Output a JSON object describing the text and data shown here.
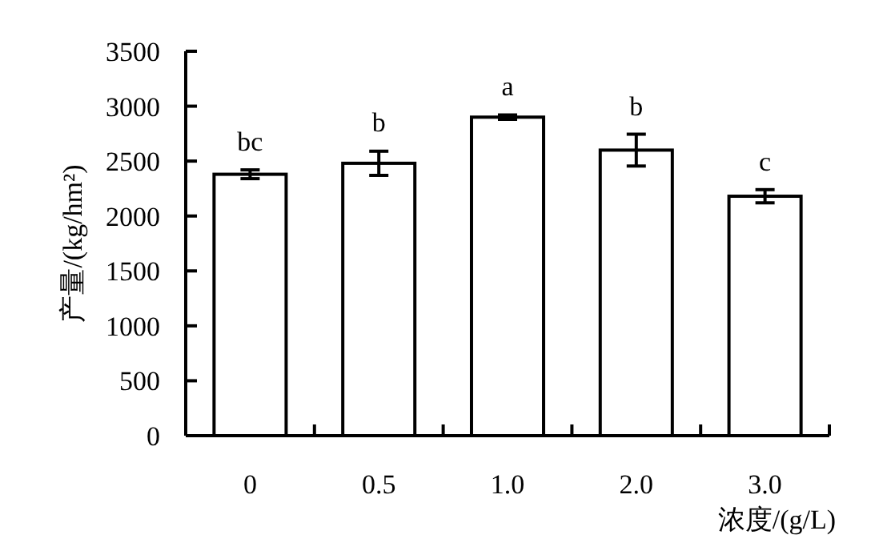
{
  "chart_data": {
    "type": "bar",
    "xlabel": "浓度/(g/L)",
    "ylabel": "产量/(kg/hm²)",
    "categories": [
      "0",
      "0.5",
      "1.0",
      "2.0",
      "3.0"
    ],
    "series": [
      {
        "color": "#ffffff",
        "values": [
          2380,
          2480,
          2900,
          2600,
          2180
        ],
        "errors": [
          40,
          110,
          20,
          145,
          60
        ]
      }
    ],
    "ylim": [
      0,
      3500
    ],
    "yticks": [
      0,
      500,
      1000,
      1500,
      2000,
      2500,
      3000,
      3500
    ],
    "grid": false,
    "annotations": [
      {
        "text": "bc",
        "x": "0",
        "y": 2420
      },
      {
        "text": "b",
        "x": "0.5",
        "y": 2595
      },
      {
        "text": "a",
        "x": "1.0",
        "y": 2925
      },
      {
        "text": "b",
        "x": "2.0",
        "y": 2745
      },
      {
        "text": "c",
        "x": "3.0",
        "y": 2240
      }
    ]
  }
}
